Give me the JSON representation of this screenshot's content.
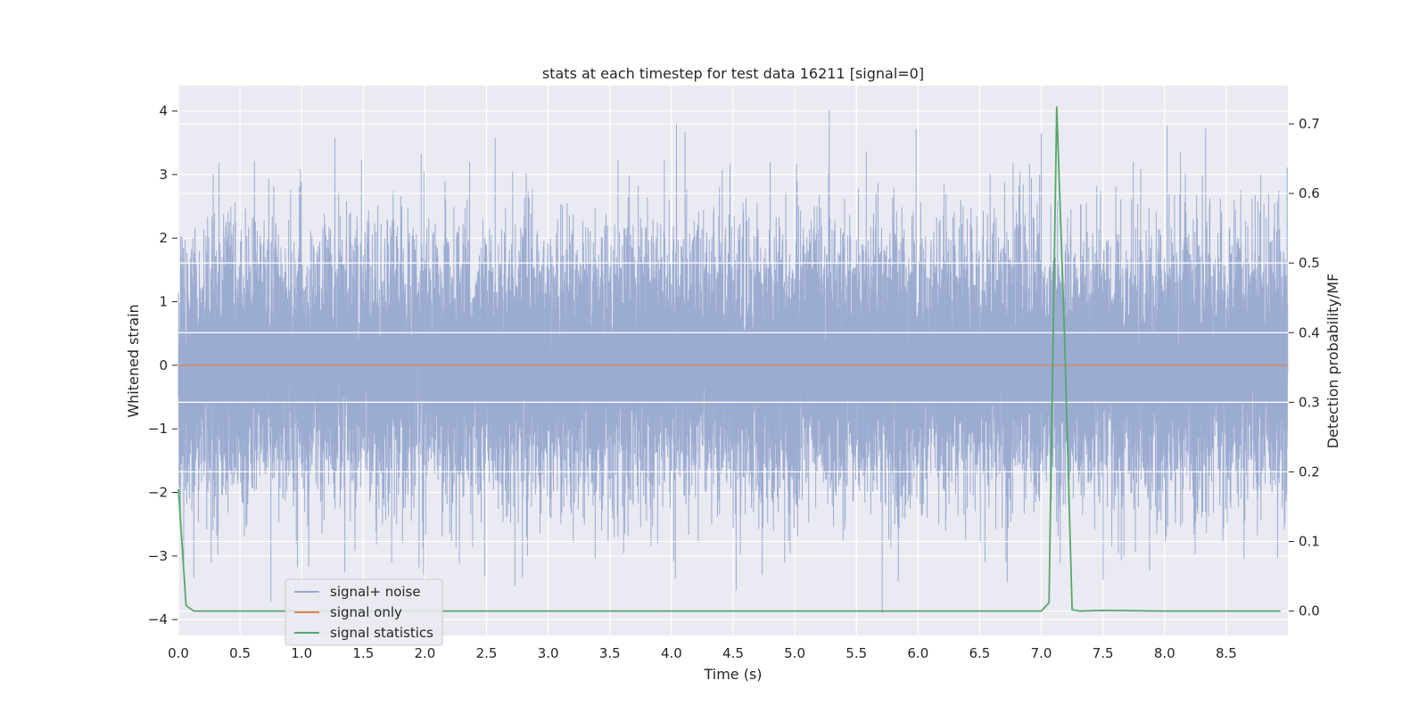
{
  "chart_data": {
    "type": "line",
    "title": "stats at each timestep for test data 16211 [signal=0]",
    "xlabel": "Time (s)",
    "ylabel": "Whitened strain",
    "y2label": "Detection probability/MF",
    "xlim": [
      0.0,
      9.0
    ],
    "ylim": [
      -4.25,
      4.4
    ],
    "y2lim": [
      -0.035,
      0.755
    ],
    "xticks": [
      "0.0",
      "0.5",
      "1.0",
      "1.5",
      "2.0",
      "2.5",
      "3.0",
      "3.5",
      "4.0",
      "4.5",
      "5.0",
      "5.5",
      "6.0",
      "6.5",
      "7.0",
      "7.5",
      "8.0",
      "8.5"
    ],
    "yticks": [
      "4",
      "3",
      "2",
      "1",
      "0",
      "−1",
      "−2",
      "−3",
      "−4"
    ],
    "y2ticks": [
      "0.7",
      "0.6",
      "0.5",
      "0.4",
      "0.3",
      "0.2",
      "0.1",
      "0.0"
    ],
    "grid": true,
    "legend_position": "lower-left",
    "series": [
      {
        "name": "signal+ noise",
        "axis": "left",
        "color": "#98a9cf",
        "kind": "noise",
        "sample_rate_hz": 2048,
        "seed": 16211,
        "std": 1.0,
        "notable_peaks": [
          {
            "x": 5.28,
            "y": 4.02
          },
          {
            "x": 1.27,
            "y": 3.58
          },
          {
            "x": 2.57,
            "y": 3.58
          },
          {
            "x": 0.75,
            "y": -3.72
          },
          {
            "x": 5.71,
            "y": -3.9
          },
          {
            "x": 5.84,
            "y": -3.4
          },
          {
            "x": 2.73,
            "y": -3.47
          },
          {
            "x": 1.97,
            "y": 3.33
          },
          {
            "x": 8.13,
            "y": 3.35
          },
          {
            "x": 0.99,
            "y": 3.08
          }
        ]
      },
      {
        "name": "signal only",
        "axis": "left",
        "color": "#dd8452",
        "x": [
          0.0,
          9.0
        ],
        "y": [
          0.0,
          0.0
        ]
      },
      {
        "name": "signal statistics",
        "axis": "right",
        "color": "#55a868",
        "x": [
          0.0,
          0.0625,
          0.125,
          0.25,
          1.0,
          2.0,
          3.0,
          4.0,
          5.0,
          6.0,
          6.9,
          7.0,
          7.0625,
          7.125,
          7.1875,
          7.25,
          7.3125,
          7.5,
          8.0,
          8.5,
          8.94
        ],
        "y": [
          0.175,
          0.008,
          0.0,
          0.0,
          0.0,
          0.0,
          0.0,
          0.0,
          0.0,
          0.0,
          0.0,
          0.0,
          0.012,
          0.725,
          0.4,
          0.002,
          0.0,
          0.001,
          0.0,
          0.0,
          0.0
        ]
      }
    ]
  }
}
